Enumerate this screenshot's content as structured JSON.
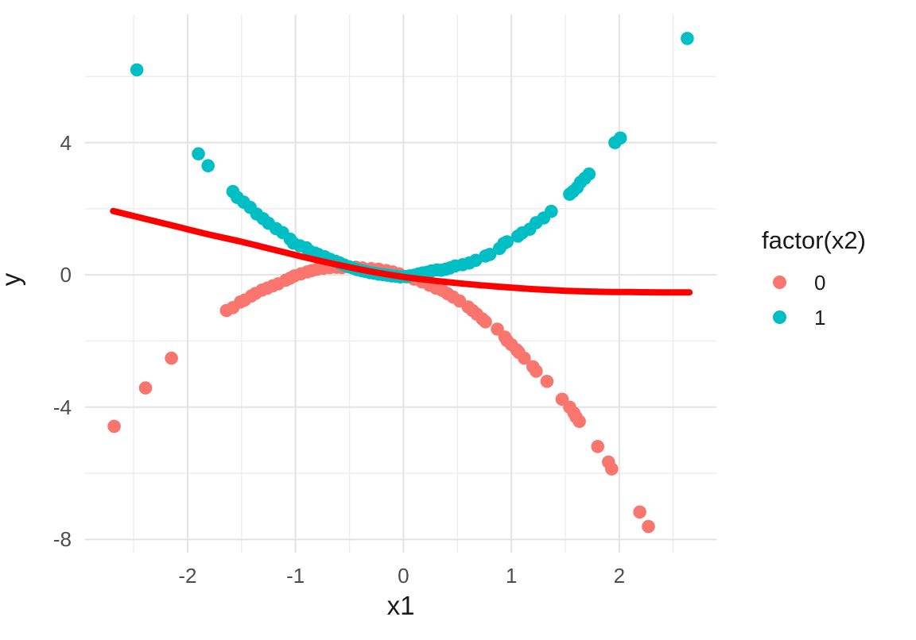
{
  "chart_data": {
    "type": "scatter",
    "title": "",
    "xlabel": "x1",
    "ylabel": "y",
    "axes": {
      "xlim": [
        -2.95,
        2.9
      ],
      "ylim": [
        -8.4,
        7.88
      ],
      "x_major_ticks": [
        -2,
        -1,
        0,
        1,
        2
      ],
      "x_minor_ticks": [
        -2.5,
        -1.5,
        -0.5,
        0.5,
        1.5,
        2.5
      ],
      "y_major_ticks": [
        -8,
        -4,
        0,
        4
      ],
      "y_minor_ticks": [
        -6,
        -2,
        2,
        6
      ],
      "grid": "major-and-minor",
      "panel_background": "#ffffff",
      "major_grid_color": "#e3e3e3",
      "minor_grid_color": "#ededed"
    },
    "legend": {
      "title": "factor(x2)",
      "position": "right",
      "entries": [
        {
          "label": "0",
          "color": "#F8766D"
        },
        {
          "label": "1",
          "color": "#00BFC4"
        }
      ]
    },
    "series": [
      {
        "name": "factor(x2) = 0",
        "kind": "points",
        "color": "#F8766D",
        "points": [
          [
            -2.68,
            -4.58
          ],
          [
            -2.39,
            -3.42
          ],
          [
            -2.15,
            -2.52
          ],
          [
            -1.64,
            -1.08
          ],
          [
            -1.58,
            -0.99
          ],
          [
            -1.51,
            -0.82
          ],
          [
            -1.47,
            -0.76
          ],
          [
            -1.41,
            -0.64
          ],
          [
            -1.37,
            -0.56
          ],
          [
            -1.31,
            -0.46
          ],
          [
            -1.26,
            -0.4
          ],
          [
            -1.21,
            -0.33
          ],
          [
            -1.16,
            -0.27
          ],
          [
            -1.09,
            -0.16
          ],
          [
            -1.05,
            -0.1
          ],
          [
            -1.01,
            -0.03
          ],
          [
            -0.95,
            0.03
          ],
          [
            -0.89,
            0.09
          ],
          [
            -0.85,
            0.13
          ],
          [
            -0.8,
            0.17
          ],
          [
            -0.74,
            0.2
          ],
          [
            -0.68,
            0.22
          ],
          [
            -0.62,
            0.23
          ],
          [
            -0.57,
            0.22
          ],
          [
            -0.5,
            0.24
          ],
          [
            -0.44,
            0.23
          ],
          [
            -0.38,
            0.21
          ],
          [
            -0.3,
            0.19
          ],
          [
            -0.23,
            0.17
          ],
          [
            -0.16,
            0.13
          ],
          [
            -0.1,
            0.09
          ],
          [
            -0.04,
            0.03
          ],
          [
            0.04,
            -0.06
          ],
          [
            0.1,
            -0.13
          ],
          [
            0.17,
            -0.21
          ],
          [
            0.24,
            -0.31
          ],
          [
            0.3,
            -0.4
          ],
          [
            0.36,
            -0.47
          ],
          [
            0.41,
            -0.57
          ],
          [
            0.46,
            -0.67
          ],
          [
            0.52,
            -0.79
          ],
          [
            0.6,
            -0.97
          ],
          [
            0.64,
            -1.08
          ],
          [
            0.68,
            -1.19
          ],
          [
            0.73,
            -1.33
          ],
          [
            0.76,
            -1.42
          ],
          [
            0.87,
            -1.64
          ],
          [
            0.94,
            -1.88
          ],
          [
            0.96,
            -1.99
          ],
          [
            1.0,
            -2.11
          ],
          [
            1.05,
            -2.27
          ],
          [
            1.07,
            -2.35
          ],
          [
            1.12,
            -2.52
          ],
          [
            1.2,
            -2.78
          ],
          [
            1.23,
            -2.91
          ],
          [
            1.33,
            -3.22
          ],
          [
            1.47,
            -3.76
          ],
          [
            1.54,
            -4.0
          ],
          [
            1.58,
            -4.18
          ],
          [
            1.6,
            -4.3
          ],
          [
            1.63,
            -4.43
          ],
          [
            1.8,
            -5.19
          ],
          [
            1.9,
            -5.66
          ],
          [
            1.93,
            -5.87
          ],
          [
            2.19,
            -7.17
          ],
          [
            2.27,
            -7.61
          ]
        ]
      },
      {
        "name": "factor(x2) = 1",
        "kind": "points",
        "color": "#00BFC4",
        "points": [
          [
            -2.47,
            6.2
          ],
          [
            -1.9,
            3.66
          ],
          [
            -1.81,
            3.3
          ],
          [
            -1.58,
            2.52
          ],
          [
            -1.54,
            2.34
          ],
          [
            -1.48,
            2.2
          ],
          [
            -1.42,
            2.04
          ],
          [
            -1.36,
            1.84
          ],
          [
            -1.3,
            1.7
          ],
          [
            -1.25,
            1.56
          ],
          [
            -1.18,
            1.4
          ],
          [
            -1.12,
            1.28
          ],
          [
            -1.05,
            1.08
          ],
          [
            -1.02,
            0.96
          ],
          [
            -0.96,
            0.88
          ],
          [
            -0.9,
            0.82
          ],
          [
            -0.87,
            0.72
          ],
          [
            -0.82,
            0.66
          ],
          [
            -0.79,
            0.62
          ],
          [
            -0.73,
            0.55
          ],
          [
            -0.68,
            0.47
          ],
          [
            -0.63,
            0.41
          ],
          [
            -0.59,
            0.36
          ],
          [
            -0.55,
            0.3
          ],
          [
            -0.51,
            0.25
          ],
          [
            -0.47,
            0.21
          ],
          [
            -0.43,
            0.16
          ],
          [
            -0.39,
            0.13
          ],
          [
            -0.35,
            0.1
          ],
          [
            -0.31,
            0.07
          ],
          [
            -0.27,
            0.05
          ],
          [
            -0.23,
            0.02
          ],
          [
            -0.19,
            0.01
          ],
          [
            -0.15,
            -0.01
          ],
          [
            -0.11,
            -0.03
          ],
          [
            -0.07,
            -0.04
          ],
          [
            -0.03,
            -0.06
          ],
          [
            0.02,
            -0.05
          ],
          [
            0.06,
            -0.03
          ],
          [
            0.1,
            -0.01
          ],
          [
            0.14,
            0.03
          ],
          [
            0.18,
            0.06
          ],
          [
            0.22,
            0.08
          ],
          [
            0.26,
            0.12
          ],
          [
            0.31,
            0.15
          ],
          [
            0.35,
            0.14
          ],
          [
            0.39,
            0.17
          ],
          [
            0.43,
            0.21
          ],
          [
            0.48,
            0.27
          ],
          [
            0.55,
            0.31
          ],
          [
            0.61,
            0.36
          ],
          [
            0.67,
            0.44
          ],
          [
            0.76,
            0.57
          ],
          [
            0.8,
            0.62
          ],
          [
            0.89,
            0.8
          ],
          [
            0.93,
            0.95
          ],
          [
            0.96,
            1.0
          ],
          [
            1.06,
            1.17
          ],
          [
            1.1,
            1.27
          ],
          [
            1.17,
            1.38
          ],
          [
            1.23,
            1.58
          ],
          [
            1.3,
            1.72
          ],
          [
            1.37,
            1.92
          ],
          [
            1.54,
            2.44
          ],
          [
            1.57,
            2.52
          ],
          [
            1.61,
            2.64
          ],
          [
            1.64,
            2.8
          ],
          [
            1.68,
            2.92
          ],
          [
            1.72,
            3.05
          ],
          [
            1.96,
            4.0
          ],
          [
            2.01,
            4.14
          ],
          [
            2.63,
            7.15
          ]
        ]
      },
      {
        "name": "smooth-fit",
        "kind": "line",
        "color": "#FF0000",
        "points": [
          [
            -2.69,
            1.93
          ],
          [
            -2.4,
            1.7
          ],
          [
            -2.1,
            1.46
          ],
          [
            -1.8,
            1.22
          ],
          [
            -1.5,
            1.0
          ],
          [
            -1.2,
            0.76
          ],
          [
            -0.9,
            0.52
          ],
          [
            -0.6,
            0.3
          ],
          [
            -0.3,
            0.1
          ],
          [
            0.0,
            -0.06
          ],
          [
            0.3,
            -0.18
          ],
          [
            0.6,
            -0.28
          ],
          [
            0.9,
            -0.36
          ],
          [
            1.2,
            -0.43
          ],
          [
            1.5,
            -0.48
          ],
          [
            1.8,
            -0.51
          ],
          [
            2.1,
            -0.52
          ],
          [
            2.4,
            -0.53
          ],
          [
            2.65,
            -0.53
          ]
        ]
      }
    ]
  }
}
